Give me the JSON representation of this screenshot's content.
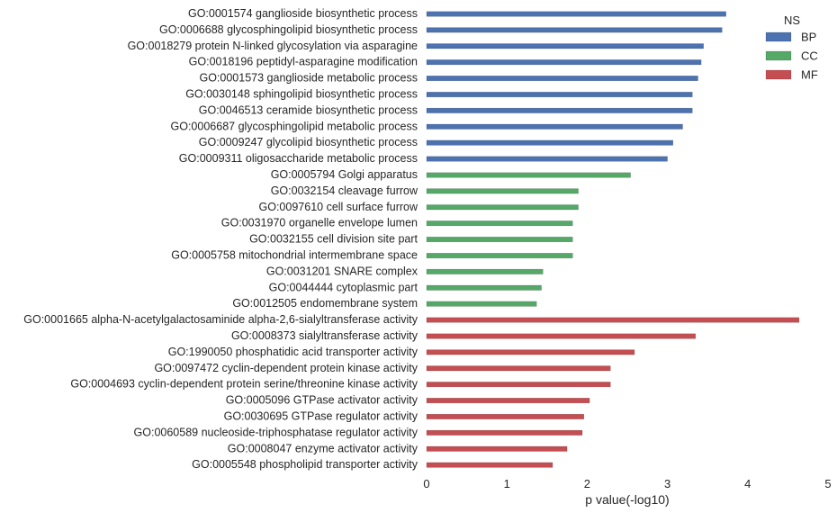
{
  "chart_data": {
    "type": "bar",
    "orientation": "horizontal",
    "xlabel": "p value(-log10)",
    "ylabel": "",
    "title": "",
    "xlim": [
      0,
      5
    ],
    "xticks": [
      "0",
      "1",
      "2",
      "3",
      "4",
      "5"
    ],
    "grid": false,
    "legend": {
      "title": "NS",
      "placement": "top-right",
      "entries": [
        {
          "name": "BP",
          "color": "#4c72b0"
        },
        {
          "name": "CC",
          "color": "#55a868"
        },
        {
          "name": "MF",
          "color": "#c44e52"
        }
      ]
    },
    "bars": [
      {
        "label": "GO:0001574 ganglioside biosynthetic process",
        "value": 3.73,
        "ns": "BP"
      },
      {
        "label": "GO:0006688 glycosphingolipid biosynthetic process",
        "value": 3.68,
        "ns": "BP"
      },
      {
        "label": "GO:0018279 protein N-linked glycosylation via asparagine",
        "value": 3.45,
        "ns": "BP"
      },
      {
        "label": "GO:0018196 peptidyl-asparagine modification",
        "value": 3.42,
        "ns": "BP"
      },
      {
        "label": "GO:0001573 ganglioside metabolic process",
        "value": 3.38,
        "ns": "BP"
      },
      {
        "label": "GO:0030148 sphingolipid biosynthetic process",
        "value": 3.31,
        "ns": "BP"
      },
      {
        "label": "GO:0046513 ceramide biosynthetic process",
        "value": 3.31,
        "ns": "BP"
      },
      {
        "label": "GO:0006687 glycosphingolipid metabolic process",
        "value": 3.19,
        "ns": "BP"
      },
      {
        "label": "GO:0009247 glycolipid biosynthetic process",
        "value": 3.07,
        "ns": "BP"
      },
      {
        "label": "GO:0009311 oligosaccharide metabolic process",
        "value": 3.0,
        "ns": "BP"
      },
      {
        "label": "GO:0005794 Golgi apparatus",
        "value": 2.54,
        "ns": "CC"
      },
      {
        "label": "GO:0032154 cleavage furrow",
        "value": 1.89,
        "ns": "CC"
      },
      {
        "label": "GO:0097610 cell surface furrow",
        "value": 1.89,
        "ns": "CC"
      },
      {
        "label": "GO:0031970 organelle envelope lumen",
        "value": 1.82,
        "ns": "CC"
      },
      {
        "label": "GO:0032155 cell division site part",
        "value": 1.82,
        "ns": "CC"
      },
      {
        "label": "GO:0005758 mitochondrial intermembrane space",
        "value": 1.82,
        "ns": "CC"
      },
      {
        "label": "GO:0031201 SNARE complex",
        "value": 1.45,
        "ns": "CC"
      },
      {
        "label": "GO:0044444 cytoplasmic part",
        "value": 1.43,
        "ns": "CC"
      },
      {
        "label": "GO:0012505 endomembrane system",
        "value": 1.37,
        "ns": "CC"
      },
      {
        "label": "GO:0001665 alpha-N-acetylgalactosaminide alpha-2,6-sialyltransferase activity",
        "value": 4.64,
        "ns": "MF"
      },
      {
        "label": "GO:0008373 sialyltransferase activity",
        "value": 3.35,
        "ns": "MF"
      },
      {
        "label": "GO:1990050 phosphatidic acid transporter activity",
        "value": 2.59,
        "ns": "MF"
      },
      {
        "label": "GO:0097472 cyclin-dependent protein kinase activity",
        "value": 2.29,
        "ns": "MF"
      },
      {
        "label": "GO:0004693 cyclin-dependent protein serine/threonine kinase activity",
        "value": 2.29,
        "ns": "MF"
      },
      {
        "label": "GO:0005096 GTPase activator activity",
        "value": 2.03,
        "ns": "MF"
      },
      {
        "label": "GO:0030695 GTPase regulator activity",
        "value": 1.96,
        "ns": "MF"
      },
      {
        "label": "GO:0060589 nucleoside-triphosphatase regulator activity",
        "value": 1.94,
        "ns": "MF"
      },
      {
        "label": "GO:0008047 enzyme activator activity",
        "value": 1.75,
        "ns": "MF"
      },
      {
        "label": "GO:0005548 phospholipid transporter activity",
        "value": 1.57,
        "ns": "MF"
      }
    ]
  }
}
